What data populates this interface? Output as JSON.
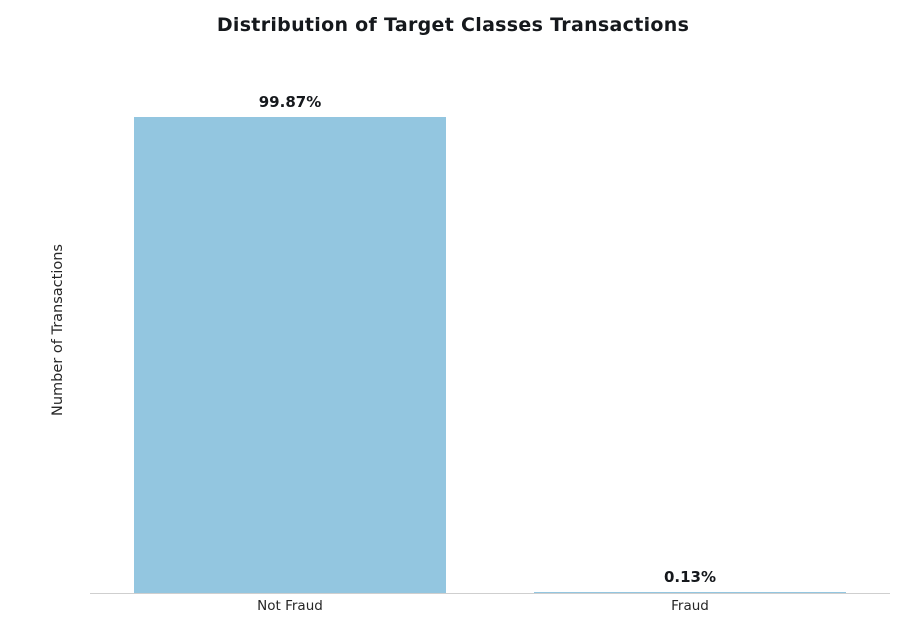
{
  "title": "Distribution of Target Classes Transactions",
  "ylabel": "Number of Transactions",
  "chart_data": {
    "type": "bar",
    "title": "Distribution of Target Classes Transactions",
    "xlabel": "",
    "ylabel": "Number of Transactions",
    "categories": [
      "Not Fraud",
      "Fraud"
    ],
    "values": [
      99.87,
      0.13
    ],
    "value_labels": [
      "99.87%",
      "0.13%"
    ],
    "units": "percent",
    "ylim": [
      0,
      100
    ],
    "bar_color": "#93c6e0",
    "axis_line_color": "#cfcfcf",
    "grid": false,
    "legend": false,
    "y_tick_labels_visible": false
  }
}
